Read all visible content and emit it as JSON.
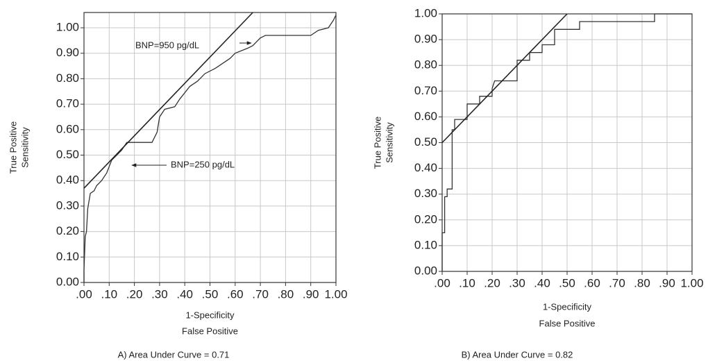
{
  "chart_data": [
    {
      "type": "line",
      "caption": "A)   Area Under Curve = 0.71",
      "xlabel": [
        "1-Specificity",
        "False Positive"
      ],
      "ylabel": [
        "True Positive",
        "Sensitivity"
      ],
      "annotations": [
        "BNP=950 pg/dL",
        "BNP=250 pg/dL"
      ],
      "xlim": [
        0,
        1
      ],
      "ylim": [
        0,
        1.06
      ],
      "grid": true,
      "xticks": [
        {
          "value": 0,
          "label": ".00"
        },
        {
          "value": 0.1,
          "label": ".10"
        },
        {
          "value": 0.2,
          "label": ".20"
        },
        {
          "value": 0.3,
          "label": ".30"
        },
        {
          "value": 0.4,
          "label": ".40"
        },
        {
          "value": 0.5,
          "label": ".50"
        },
        {
          "value": 0.6,
          "label": ".60"
        },
        {
          "value": 0.7,
          "label": ".70"
        },
        {
          "value": 0.8,
          "label": ".80"
        },
        {
          "value": 0.9,
          "label": ".90"
        },
        {
          "value": 1,
          "label": "1.00"
        }
      ],
      "yticks": [
        {
          "value": 0,
          "label": "0.00"
        },
        {
          "value": 0.1,
          "label": "0.10"
        },
        {
          "value": 0.2,
          "label": "0.20"
        },
        {
          "value": 0.3,
          "label": "0.30"
        },
        {
          "value": 0.4,
          "label": "0.40"
        },
        {
          "value": 0.5,
          "label": "0.50"
        },
        {
          "value": 0.6,
          "label": "0.60"
        },
        {
          "value": 0.7,
          "label": "0.70"
        },
        {
          "value": 0.8,
          "label": "0.80"
        },
        {
          "value": 0.9,
          "label": "0.90"
        },
        {
          "value": 1,
          "label": "1.00"
        }
      ],
      "series": [
        {
          "color": "#333333",
          "x": [
            0,
            0,
            0.005,
            0.01,
            0.015,
            0.025,
            0.04,
            0.05,
            0.07,
            0.09,
            0.11,
            0.13,
            0.15,
            0.17,
            0.2,
            0.27,
            0.29,
            0.3,
            0.32,
            0.36,
            0.38,
            0.42,
            0.45,
            0.48,
            0.52,
            0.55,
            0.58,
            0.6,
            0.65,
            0.67,
            0.7,
            0.72,
            0.8,
            0.9,
            0.93,
            0.97,
            0.99,
            1.0
          ],
          "values": [
            0,
            0.05,
            0.18,
            0.2,
            0.29,
            0.35,
            0.36,
            0.38,
            0.4,
            0.43,
            0.48,
            0.5,
            0.52,
            0.55,
            0.55,
            0.55,
            0.59,
            0.65,
            0.68,
            0.69,
            0.72,
            0.77,
            0.79,
            0.82,
            0.84,
            0.86,
            0.88,
            0.9,
            0.92,
            0.93,
            0.96,
            0.97,
            0.97,
            0.97,
            0.99,
            1.0,
            1.03,
            1.05
          ]
        },
        {
          "color": "#222222",
          "x": [
            0,
            0.67
          ],
          "values": [
            0.37,
            1.06
          ]
        }
      ]
    },
    {
      "type": "line",
      "caption": "B)   Area Under Curve = 0.82",
      "xlabel": [
        "1-Specificity",
        "False Positive"
      ],
      "ylabel": [
        "True Positive",
        "Sensitivity"
      ],
      "xlim": [
        0,
        1
      ],
      "ylim": [
        0,
        1
      ],
      "grid": true,
      "xticks": [
        {
          "value": 0,
          "label": ".00"
        },
        {
          "value": 0.1,
          "label": ".10"
        },
        {
          "value": 0.2,
          "label": ".20"
        },
        {
          "value": 0.3,
          "label": ".30"
        },
        {
          "value": 0.4,
          "label": ".40"
        },
        {
          "value": 0.5,
          "label": ".50"
        },
        {
          "value": 0.6,
          "label": ".60"
        },
        {
          "value": 0.7,
          "label": ".70"
        },
        {
          "value": 0.8,
          "label": ".80"
        },
        {
          "value": 0.9,
          "label": ".90"
        },
        {
          "value": 1,
          "label": "1.00"
        }
      ],
      "yticks": [
        {
          "value": 0,
          "label": "0.00"
        },
        {
          "value": 0.1,
          "label": "0.10"
        },
        {
          "value": 0.2,
          "label": "0.20"
        },
        {
          "value": 0.3,
          "label": "0.30"
        },
        {
          "value": 0.4,
          "label": "0.40"
        },
        {
          "value": 0.5,
          "label": "0.50"
        },
        {
          "value": 0.6,
          "label": "0.60"
        },
        {
          "value": 0.7,
          "label": "0.70"
        },
        {
          "value": 0.8,
          "label": "0.80"
        },
        {
          "value": 0.9,
          "label": "0.90"
        },
        {
          "value": 1,
          "label": "1.00"
        }
      ],
      "series": [
        {
          "color": "#333333",
          "x": [
            0,
            0,
            0.01,
            0.01,
            0.02,
            0.02,
            0.04,
            0.04,
            0.05,
            0.05,
            0.1,
            0.1,
            0.15,
            0.15,
            0.2,
            0.2,
            0.21,
            0.3,
            0.3,
            0.35,
            0.35,
            0.4,
            0.4,
            0.45,
            0.45,
            0.55,
            0.55,
            0.6,
            0.85,
            0.85,
            1.0
          ],
          "values": [
            0,
            0.15,
            0.15,
            0.29,
            0.29,
            0.32,
            0.32,
            0.55,
            0.55,
            0.59,
            0.59,
            0.65,
            0.65,
            0.68,
            0.68,
            0.71,
            0.74,
            0.74,
            0.82,
            0.82,
            0.85,
            0.85,
            0.88,
            0.88,
            0.94,
            0.94,
            0.97,
            0.97,
            0.97,
            1.0,
            1.0
          ]
        },
        {
          "color": "#222222",
          "x": [
            0,
            0.5
          ],
          "values": [
            0.5,
            1.0
          ]
        }
      ]
    }
  ]
}
